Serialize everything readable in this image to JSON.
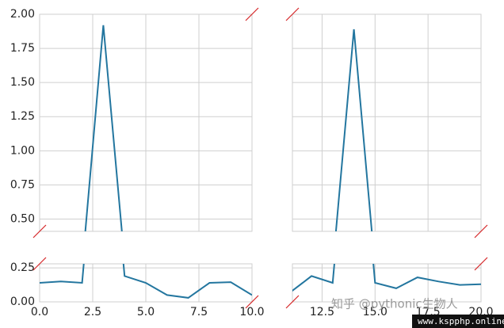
{
  "chart_data": [
    {
      "type": "line",
      "color": "#23769f",
      "x": [
        0,
        1,
        2,
        3,
        4,
        5,
        6,
        7,
        8,
        9,
        10
      ],
      "values": [
        0.14,
        0.15,
        0.14,
        1.92,
        0.19,
        0.14,
        0.05,
        0.03,
        0.14,
        0.145,
        0.05
      ],
      "xlim": [
        0,
        10
      ],
      "xticks": [
        {
          "value": 0,
          "label": "0.0"
        },
        2.5,
        {
          "value": 5,
          "label": "5.0"
        },
        7.5,
        {
          "value": 10,
          "label": "10.0"
        }
      ],
      "ylim": [
        0.41,
        2.0
      ],
      "yticks": [
        {
          "value": 0.5,
          "label": "0.50"
        },
        0.75,
        {
          "value": 1.0,
          "label": "1.00"
        },
        1.25,
        {
          "value": 1.5,
          "label": "1.50"
        },
        1.75,
        {
          "value": 2.0,
          "label": "2.00"
        }
      ],
      "lower_ylim": [
        0,
        0.28
      ],
      "lower_yticks": [
        {
          "value": 0,
          "label": "0.00"
        },
        0.25
      ],
      "grid": true
    },
    {
      "type": "line",
      "color": "#23769f",
      "x": [
        11,
        12,
        13,
        14,
        15,
        16,
        17,
        18,
        19,
        20
      ],
      "values": [
        0.07,
        0.19,
        0.14,
        1.89,
        0.14,
        0.1,
        0.18,
        0.15,
        0.125,
        0.13
      ],
      "xlim": [
        11.1,
        20
      ],
      "xticks": [
        12.5,
        {
          "value": 15,
          "label": "15.0"
        },
        17.5,
        {
          "value": 20,
          "label": "20.0"
        }
      ],
      "ylim": [
        0.41,
        2.0
      ],
      "yticks": [
        0.5,
        0.75,
        1.0,
        1.25,
        1.5,
        1.75,
        2.0
      ],
      "lower_ylim": [
        0,
        0.28
      ],
      "lower_yticks": [
        0,
        0.25
      ],
      "grid": true
    }
  ],
  "watermark": {
    "text": "知乎 @pythonic生物人",
    "site": "www.kspphp.online"
  }
}
